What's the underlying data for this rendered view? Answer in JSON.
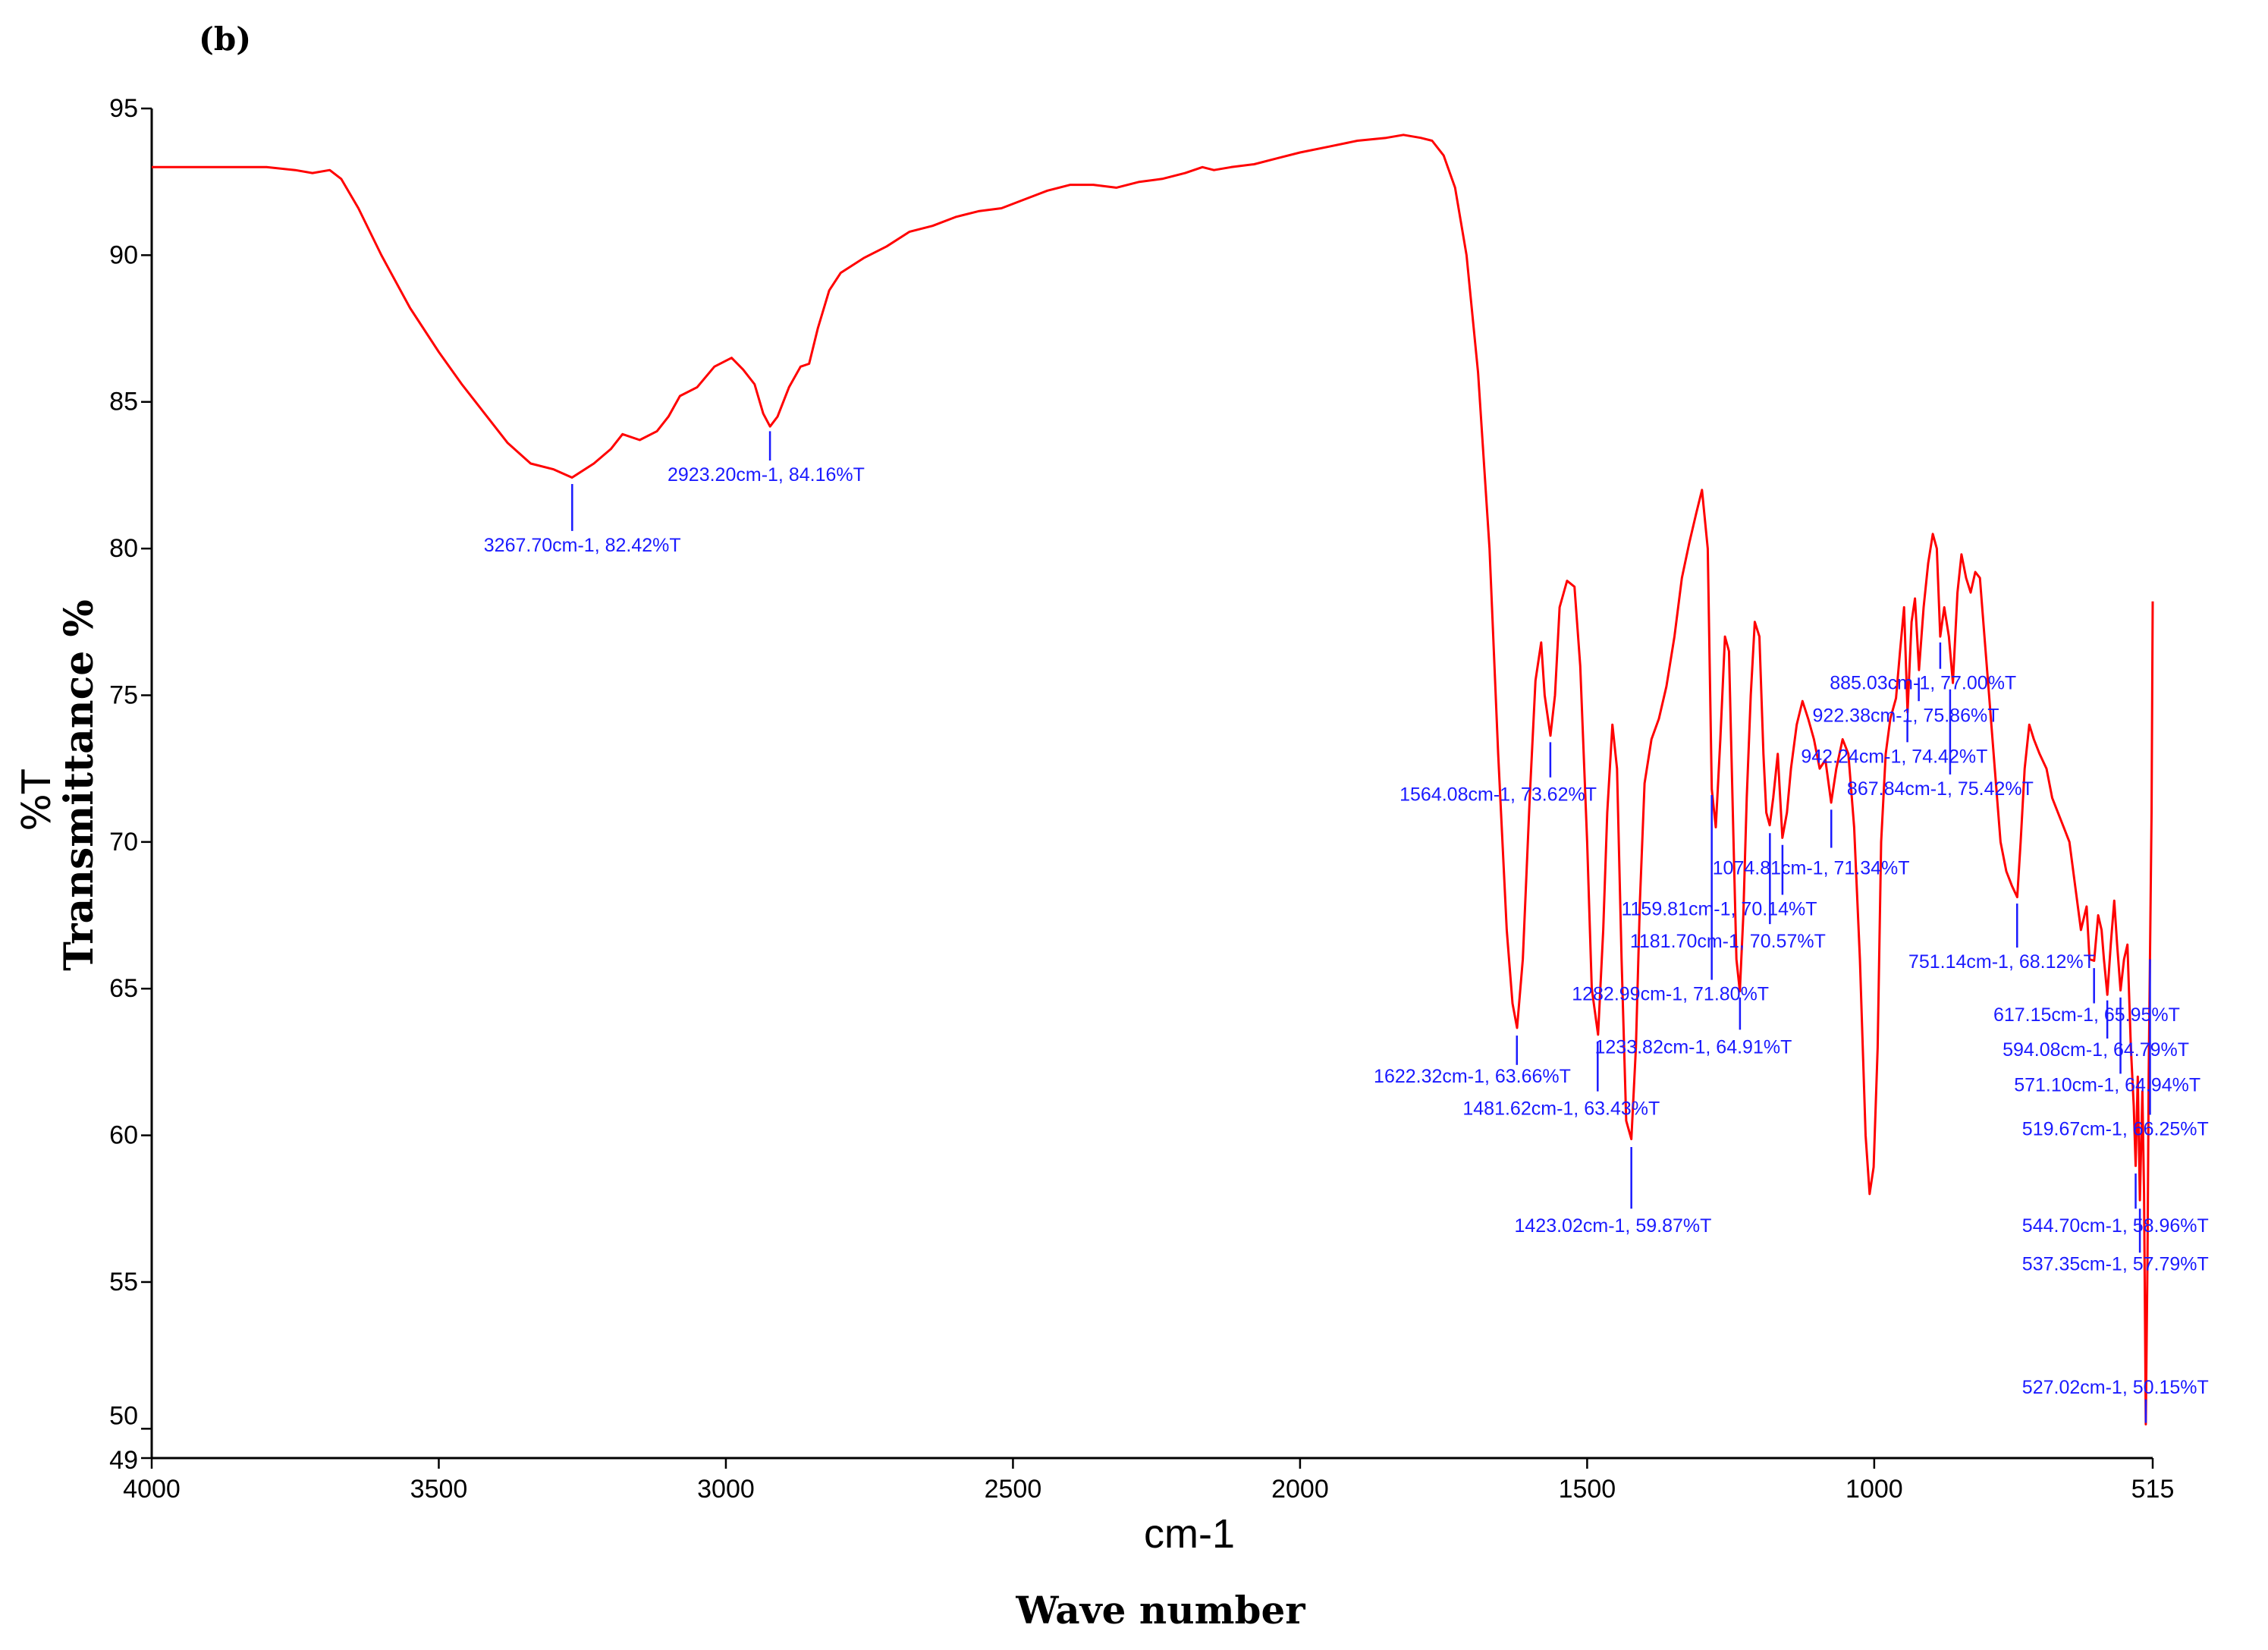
{
  "chart_data": {
    "type": "line",
    "panel_label": "(b)",
    "ylabel": "Transmittance %",
    "ylabel_unit": "%T",
    "xlabel": "Wave number",
    "xunit_label": "cm-1",
    "xlim": [
      4000,
      515
    ],
    "ylim": [
      49,
      95
    ],
    "x_ticks": [
      {
        "value": 4000,
        "label": "4000"
      },
      {
        "value": 3500,
        "label": "3500"
      },
      {
        "value": 3000,
        "label": "3000"
      },
      {
        "value": 2500,
        "label": "2500"
      },
      {
        "value": 2000,
        "label": "2000"
      },
      {
        "value": 1500,
        "label": "1500"
      },
      {
        "value": 1000,
        "label": "1000"
      },
      {
        "value": 515,
        "label": "515"
      }
    ],
    "y_ticks": [
      {
        "value": 95,
        "label": "95"
      },
      {
        "value": 90,
        "label": "90"
      },
      {
        "value": 85,
        "label": "85"
      },
      {
        "value": 80,
        "label": "80"
      },
      {
        "value": 75,
        "label": "75"
      },
      {
        "value": 70,
        "label": "70"
      },
      {
        "value": 65,
        "label": "65"
      },
      {
        "value": 60,
        "label": "60"
      },
      {
        "value": 55,
        "label": "55"
      },
      {
        "value": 50,
        "label": "50"
      },
      {
        "value": 49,
        "label": "49"
      }
    ],
    "line_color": "#ff0000",
    "annotation_color": "#1a1aff",
    "series": [
      {
        "points": [
          [
            4000,
            93.0
          ],
          [
            3900,
            93.0
          ],
          [
            3800,
            93.0
          ],
          [
            3750,
            92.9
          ],
          [
            3720,
            92.8
          ],
          [
            3690,
            92.9
          ],
          [
            3670,
            92.6
          ],
          [
            3640,
            91.6
          ],
          [
            3600,
            90.0
          ],
          [
            3550,
            88.2
          ],
          [
            3500,
            86.7
          ],
          [
            3460,
            85.6
          ],
          [
            3420,
            84.6
          ],
          [
            3380,
            83.6
          ],
          [
            3340,
            82.9
          ],
          [
            3300,
            82.7
          ],
          [
            3268,
            82.42
          ],
          [
            3230,
            82.9
          ],
          [
            3200,
            83.4
          ],
          [
            3180,
            83.9
          ],
          [
            3150,
            83.7
          ],
          [
            3120,
            84.0
          ],
          [
            3100,
            84.5
          ],
          [
            3080,
            85.2
          ],
          [
            3050,
            85.5
          ],
          [
            3020,
            86.2
          ],
          [
            2990,
            86.5
          ],
          [
            2970,
            86.1
          ],
          [
            2950,
            85.6
          ],
          [
            2935,
            84.6
          ],
          [
            2923,
            84.16
          ],
          [
            2910,
            84.5
          ],
          [
            2890,
            85.5
          ],
          [
            2870,
            86.2
          ],
          [
            2855,
            86.3
          ],
          [
            2840,
            87.5
          ],
          [
            2820,
            88.8
          ],
          [
            2800,
            89.4
          ],
          [
            2760,
            89.9
          ],
          [
            2720,
            90.3
          ],
          [
            2680,
            90.8
          ],
          [
            2640,
            91.0
          ],
          [
            2600,
            91.3
          ],
          [
            2560,
            91.5
          ],
          [
            2520,
            91.6
          ],
          [
            2480,
            91.9
          ],
          [
            2440,
            92.2
          ],
          [
            2400,
            92.4
          ],
          [
            2360,
            92.4
          ],
          [
            2320,
            92.3
          ],
          [
            2280,
            92.5
          ],
          [
            2240,
            92.6
          ],
          [
            2200,
            92.8
          ],
          [
            2170,
            93.0
          ],
          [
            2150,
            92.9
          ],
          [
            2120,
            93.0
          ],
          [
            2080,
            93.1
          ],
          [
            2040,
            93.3
          ],
          [
            2000,
            93.5
          ],
          [
            1950,
            93.7
          ],
          [
            1900,
            93.9
          ],
          [
            1850,
            94.0
          ],
          [
            1820,
            94.1
          ],
          [
            1790,
            94.0
          ],
          [
            1770,
            93.9
          ],
          [
            1750,
            93.4
          ],
          [
            1730,
            92.3
          ],
          [
            1710,
            90.0
          ],
          [
            1690,
            86.0
          ],
          [
            1670,
            80.0
          ],
          [
            1655,
            73.0
          ],
          [
            1640,
            67.0
          ],
          [
            1630,
            64.5
          ],
          [
            1622,
            63.66
          ],
          [
            1612,
            66.0
          ],
          [
            1600,
            71.5
          ],
          [
            1590,
            75.5
          ],
          [
            1580,
            76.8
          ],
          [
            1574,
            75.0
          ],
          [
            1564,
            73.62
          ],
          [
            1556,
            75.0
          ],
          [
            1548,
            78.0
          ],
          [
            1535,
            78.9
          ],
          [
            1522,
            78.7
          ],
          [
            1512,
            76.0
          ],
          [
            1500,
            70.0
          ],
          [
            1492,
            65.0
          ],
          [
            1481,
            63.43
          ],
          [
            1472,
            67.0
          ],
          [
            1465,
            71.0
          ],
          [
            1456,
            74.0
          ],
          [
            1448,
            72.5
          ],
          [
            1440,
            66.0
          ],
          [
            1432,
            60.5
          ],
          [
            1423,
            59.87
          ],
          [
            1415,
            63.0
          ],
          [
            1408,
            68.0
          ],
          [
            1400,
            72.0
          ],
          [
            1388,
            73.5
          ],
          [
            1375,
            74.2
          ],
          [
            1362,
            75.3
          ],
          [
            1348,
            77.0
          ],
          [
            1335,
            79.0
          ],
          [
            1322,
            80.2
          ],
          [
            1310,
            81.2
          ],
          [
            1300,
            82.0
          ],
          [
            1290,
            80.0
          ],
          [
            1283,
            71.8
          ],
          [
            1276,
            70.5
          ],
          [
            1268,
            73.5
          ],
          [
            1260,
            77.0
          ],
          [
            1253,
            76.5
          ],
          [
            1245,
            70.0
          ],
          [
            1240,
            66.0
          ],
          [
            1234,
            64.91
          ],
          [
            1228,
            67.5
          ],
          [
            1222,
            71.5
          ],
          [
            1215,
            75.0
          ],
          [
            1208,
            77.5
          ],
          [
            1200,
            77.0
          ],
          [
            1193,
            73.0
          ],
          [
            1188,
            71.0
          ],
          [
            1182,
            70.57
          ],
          [
            1176,
            71.5
          ],
          [
            1168,
            73.0
          ],
          [
            1160,
            70.14
          ],
          [
            1152,
            71.0
          ],
          [
            1145,
            72.5
          ],
          [
            1135,
            74.0
          ],
          [
            1125,
            74.8
          ],
          [
            1115,
            74.2
          ],
          [
            1105,
            73.5
          ],
          [
            1095,
            72.5
          ],
          [
            1085,
            72.8
          ],
          [
            1075,
            71.34
          ],
          [
            1066,
            72.5
          ],
          [
            1055,
            73.5
          ],
          [
            1045,
            73.0
          ],
          [
            1035,
            70.5
          ],
          [
            1025,
            66.0
          ],
          [
            1015,
            60.0
          ],
          [
            1008,
            58.0
          ],
          [
            1001,
            58.92
          ],
          [
            994,
            63.0
          ],
          [
            988,
            70.0
          ],
          [
            980,
            73.0
          ],
          [
            972,
            74.2
          ],
          [
            962,
            74.9
          ],
          [
            955,
            76.5
          ],
          [
            948,
            78.0
          ],
          [
            942,
            74.42
          ],
          [
            935,
            77.5
          ],
          [
            929,
            78.3
          ],
          [
            922,
            75.86
          ],
          [
            914,
            78.0
          ],
          [
            906,
            79.5
          ],
          [
            898,
            80.5
          ],
          [
            891,
            80.0
          ],
          [
            885,
            77.0
          ],
          [
            878,
            78.0
          ],
          [
            870,
            77.0
          ],
          [
            863,
            75.42
          ],
          [
            855,
            78.5
          ],
          [
            848,
            79.8
          ],
          [
            840,
            79.0
          ],
          [
            832,
            78.5
          ],
          [
            824,
            79.2
          ],
          [
            816,
            79.0
          ],
          [
            808,
            77.0
          ],
          [
            800,
            75.0
          ],
          [
            790,
            72.5
          ],
          [
            780,
            70.0
          ],
          [
            770,
            69.0
          ],
          [
            760,
            68.5
          ],
          [
            751,
            68.12
          ],
          [
            745,
            70.0
          ],
          [
            738,
            72.5
          ],
          [
            730,
            74.0
          ],
          [
            722,
            73.5
          ],
          [
            712,
            73.0
          ],
          [
            700,
            72.5
          ],
          [
            690,
            71.5
          ],
          [
            680,
            71.0
          ],
          [
            670,
            70.5
          ],
          [
            660,
            70.0
          ],
          [
            650,
            68.5
          ],
          [
            640,
            67.0
          ],
          [
            630,
            67.8
          ],
          [
            625,
            66.0
          ],
          [
            617,
            65.95
          ],
          [
            610,
            67.5
          ],
          [
            604,
            67.0
          ],
          [
            600,
            66.0
          ],
          [
            594,
            64.79
          ],
          [
            588,
            66.5
          ],
          [
            582,
            68.0
          ],
          [
            577,
            66.5
          ],
          [
            571,
            64.94
          ],
          [
            565,
            66.0
          ],
          [
            559,
            66.5
          ],
          [
            553,
            63.0
          ],
          [
            548,
            61.0
          ],
          [
            544.7,
            58.96
          ],
          [
            541,
            62.0
          ],
          [
            537.35,
            57.79
          ],
          [
            533,
            61.5
          ],
          [
            530,
            58.0
          ],
          [
            527,
            50.15
          ],
          [
            524,
            56.0
          ],
          [
            522,
            62.0
          ],
          [
            519.67,
            66.25
          ],
          [
            517,
            71.0
          ],
          [
            515,
            78.2
          ]
        ]
      }
    ],
    "annotations": [
      {
        "label": "3267.70cm-1, 82.42%T",
        "x": 3267.7,
        "y": 82.42,
        "tick_from": 80.6,
        "tick_to": 82.2,
        "text_x": 3250,
        "text_y": 79.9,
        "anchor": "middle"
      },
      {
        "label": "2923.20cm-1, 84.16%T",
        "x": 2923.2,
        "y": 84.16,
        "tick_from": 83.0,
        "tick_to": 84.0,
        "text_x": 2930,
        "text_y": 82.3,
        "anchor": "middle"
      },
      {
        "label": "1564.08cm-1, 73.62%T",
        "x": 1564.08,
        "y": 73.62,
        "tick_from": 72.2,
        "tick_to": 73.4,
        "text_x": 1655,
        "text_y": 71.4,
        "anchor": "middle"
      },
      {
        "label": "1622.32cm-1, 63.66%T",
        "x": 1622.32,
        "y": 63.66,
        "tick_from": 62.4,
        "tick_to": 63.4,
        "text_x": 1700,
        "text_y": 61.8,
        "anchor": "middle"
      },
      {
        "label": "1481.62cm-1, 63.43%T",
        "x": 1481.62,
        "y": 63.43,
        "tick_from": 61.5,
        "tick_to": 63.2,
        "text_x": 1545,
        "text_y": 60.7,
        "anchor": "middle"
      },
      {
        "label": "1423.02cm-1, 59.87%T",
        "x": 1423.02,
        "y": 59.87,
        "tick_from": 57.5,
        "tick_to": 59.6,
        "text_x": 1455,
        "text_y": 56.7,
        "anchor": "middle"
      },
      {
        "label": "1282.99cm-1, 71.80%T",
        "x": 1282.99,
        "y": 71.8,
        "tick_from": 65.3,
        "tick_to": 71.6,
        "text_x": 1355,
        "text_y": 64.6,
        "anchor": "middle"
      },
      {
        "label": "1233.82cm-1, 64.91%T",
        "x": 1233.82,
        "y": 64.91,
        "tick_from": 63.6,
        "tick_to": 64.7,
        "text_x": 1315,
        "text_y": 62.8,
        "anchor": "middle"
      },
      {
        "label": "1181.70cm-1, 70.57%T",
        "x": 1181.7,
        "y": 70.57,
        "tick_from": 67.2,
        "tick_to": 70.3,
        "text_x": 1255,
        "text_y": 66.4,
        "anchor": "middle"
      },
      {
        "label": "1159.81cm-1, 70.14%T",
        "x": 1159.81,
        "y": 70.14,
        "tick_from": 68.2,
        "tick_to": 69.9,
        "text_x": 1270,
        "text_y": 67.5,
        "anchor": "middle"
      },
      {
        "label": "1074.81cm-1, 71.34%T",
        "x": 1074.81,
        "y": 71.34,
        "tick_from": 69.8,
        "tick_to": 71.1,
        "text_x": 1110,
        "text_y": 68.9,
        "anchor": "middle"
      },
      {
        "label": "942.24cm-1, 74.42%T",
        "x": 942.24,
        "y": 74.42,
        "tick_from": 73.4,
        "tick_to": 74.2,
        "text_x": 965,
        "text_y": 72.7,
        "anchor": "middle"
      },
      {
        "label": "922.38cm-1, 75.86%T",
        "x": 922.38,
        "y": 75.86,
        "tick_from": 74.8,
        "tick_to": 75.6,
        "text_x": 945,
        "text_y": 74.1,
        "anchor": "middle"
      },
      {
        "label": "885.03cm-1, 77.00%T",
        "x": 885.03,
        "y": 77.0,
        "tick_from": 75.9,
        "tick_to": 76.8,
        "text_x": 915,
        "text_y": 75.2,
        "anchor": "middle"
      },
      {
        "label": "867.84cm-1, 75.42%T",
        "x": 867.84,
        "y": 75.42,
        "tick_from": 72.3,
        "tick_to": 75.2,
        "text_x": 885,
        "text_y": 71.6,
        "anchor": "middle"
      },
      {
        "label": "751.14cm-1, 68.12%T",
        "x": 751.14,
        "y": 68.12,
        "tick_from": 66.4,
        "tick_to": 67.9,
        "text_x": 778,
        "text_y": 65.7,
        "anchor": "middle"
      },
      {
        "label": "617.15cm-1, 65.95%T",
        "x": 617.15,
        "y": 65.95,
        "tick_from": 64.5,
        "tick_to": 65.7,
        "text_x": 630,
        "text_y": 63.9,
        "anchor": "middle"
      },
      {
        "label": "594.08cm-1, 64.79%T",
        "x": 594.08,
        "y": 64.79,
        "tick_from": 63.3,
        "tick_to": 64.6,
        "text_x": 614,
        "text_y": 62.7,
        "anchor": "middle"
      },
      {
        "label": "571.10cm-1, 64.94%T",
        "x": 571.1,
        "y": 64.94,
        "tick_from": 62.1,
        "tick_to": 64.7,
        "text_x": 594,
        "text_y": 61.5,
        "anchor": "middle"
      },
      {
        "label": "519.67cm-1, 66.25%T",
        "x": 519.67,
        "y": 66.25,
        "tick_from": 60.7,
        "tick_to": 66.0,
        "text_x": 580,
        "text_y": 60.0,
        "anchor": "middle"
      },
      {
        "label": "544.70cm-1, 58.96%T",
        "x": 544.7,
        "y": 58.96,
        "tick_from": 57.5,
        "tick_to": 58.7,
        "text_x": 580,
        "text_y": 56.7,
        "anchor": "middle"
      },
      {
        "label": "537.35cm-1, 57.79%T",
        "x": 537.35,
        "y": 57.79,
        "tick_from": 56.0,
        "tick_to": 57.5,
        "text_x": 580,
        "text_y": 55.4,
        "anchor": "middle"
      },
      {
        "label": "527.02cm-1, 50.15%T",
        "x": 527.02,
        "y": 50.15,
        "tick_from": 50.2,
        "tick_to": 51.0,
        "text_x": 580,
        "text_y": 51.2,
        "anchor": "middle"
      }
    ]
  }
}
